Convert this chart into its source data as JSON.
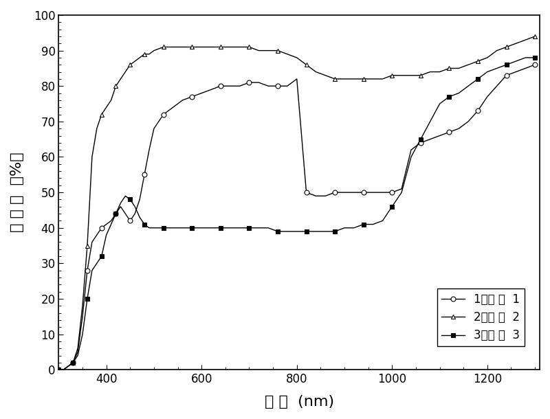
{
  "title": "",
  "xlabel": "波 长  (nm)",
  "ylabel": "透 过 率  （%）",
  "xlim": [
    300,
    1310
  ],
  "ylim": [
    0,
    100
  ],
  "xticks": [
    400,
    600,
    800,
    1000,
    1200
  ],
  "yticks": [
    0,
    10,
    20,
    30,
    40,
    50,
    60,
    70,
    80,
    90,
    100
  ],
  "legend": [
    "1：样 品  1",
    "2：样 品  2",
    "3：样 品  3"
  ],
  "line_color": "#000000",
  "background_color": "#ffffff",
  "series1": {
    "x": [
      300,
      310,
      320,
      330,
      340,
      350,
      360,
      370,
      380,
      390,
      400,
      410,
      420,
      430,
      440,
      450,
      460,
      470,
      480,
      490,
      500,
      520,
      540,
      560,
      580,
      600,
      620,
      640,
      660,
      680,
      700,
      720,
      740,
      760,
      780,
      800,
      820,
      840,
      860,
      880,
      900,
      920,
      940,
      960,
      980,
      1000,
      1020,
      1040,
      1060,
      1080,
      1100,
      1120,
      1140,
      1160,
      1180,
      1200,
      1220,
      1240,
      1260,
      1280,
      1300
    ],
    "y": [
      0,
      0,
      1,
      2,
      5,
      15,
      28,
      36,
      38,
      40,
      41,
      42,
      44,
      46,
      44,
      42,
      44,
      48,
      55,
      62,
      68,
      72,
      74,
      76,
      77,
      78,
      79,
      80,
      80,
      80,
      81,
      81,
      80,
      80,
      80,
      82,
      50,
      49,
      49,
      50,
      50,
      50,
      50,
      50,
      50,
      50,
      51,
      62,
      64,
      65,
      66,
      67,
      68,
      70,
      73,
      77,
      80,
      83,
      84,
      85,
      86
    ],
    "marker": "o",
    "markersize": 5
  },
  "series2": {
    "x": [
      300,
      310,
      320,
      330,
      340,
      350,
      360,
      370,
      380,
      390,
      400,
      410,
      420,
      430,
      440,
      450,
      460,
      470,
      480,
      490,
      500,
      520,
      540,
      560,
      580,
      600,
      620,
      640,
      660,
      680,
      700,
      720,
      740,
      760,
      780,
      800,
      820,
      840,
      860,
      880,
      900,
      920,
      940,
      960,
      980,
      1000,
      1020,
      1040,
      1060,
      1080,
      1100,
      1120,
      1140,
      1160,
      1180,
      1200,
      1220,
      1240,
      1260,
      1280,
      1300
    ],
    "y": [
      0,
      0,
      1,
      2,
      6,
      18,
      35,
      60,
      68,
      72,
      74,
      76,
      80,
      82,
      84,
      86,
      87,
      88,
      89,
      89,
      90,
      91,
      91,
      91,
      91,
      91,
      91,
      91,
      91,
      91,
      91,
      90,
      90,
      90,
      89,
      88,
      86,
      84,
      83,
      82,
      82,
      82,
      82,
      82,
      82,
      83,
      83,
      83,
      83,
      84,
      84,
      85,
      85,
      86,
      87,
      88,
      90,
      91,
      92,
      93,
      94
    ],
    "marker": "^",
    "markersize": 5
  },
  "series3": {
    "x": [
      300,
      310,
      320,
      330,
      340,
      350,
      360,
      370,
      380,
      390,
      400,
      410,
      420,
      430,
      440,
      450,
      460,
      470,
      480,
      490,
      500,
      520,
      540,
      560,
      580,
      600,
      620,
      640,
      660,
      680,
      700,
      720,
      740,
      760,
      780,
      800,
      820,
      840,
      860,
      880,
      900,
      920,
      940,
      960,
      980,
      1000,
      1020,
      1040,
      1060,
      1080,
      1100,
      1120,
      1140,
      1160,
      1180,
      1200,
      1220,
      1240,
      1260,
      1280,
      1300
    ],
    "y": [
      0,
      0,
      1,
      2,
      4,
      10,
      20,
      28,
      30,
      32,
      38,
      41,
      44,
      47,
      49,
      48,
      46,
      43,
      41,
      40,
      40,
      40,
      40,
      40,
      40,
      40,
      40,
      40,
      40,
      40,
      40,
      40,
      40,
      39,
      39,
      39,
      39,
      39,
      39,
      39,
      40,
      40,
      41,
      41,
      42,
      46,
      50,
      60,
      65,
      70,
      75,
      77,
      78,
      80,
      82,
      84,
      85,
      86,
      87,
      88,
      88
    ],
    "marker": "s",
    "markersize": 5
  }
}
